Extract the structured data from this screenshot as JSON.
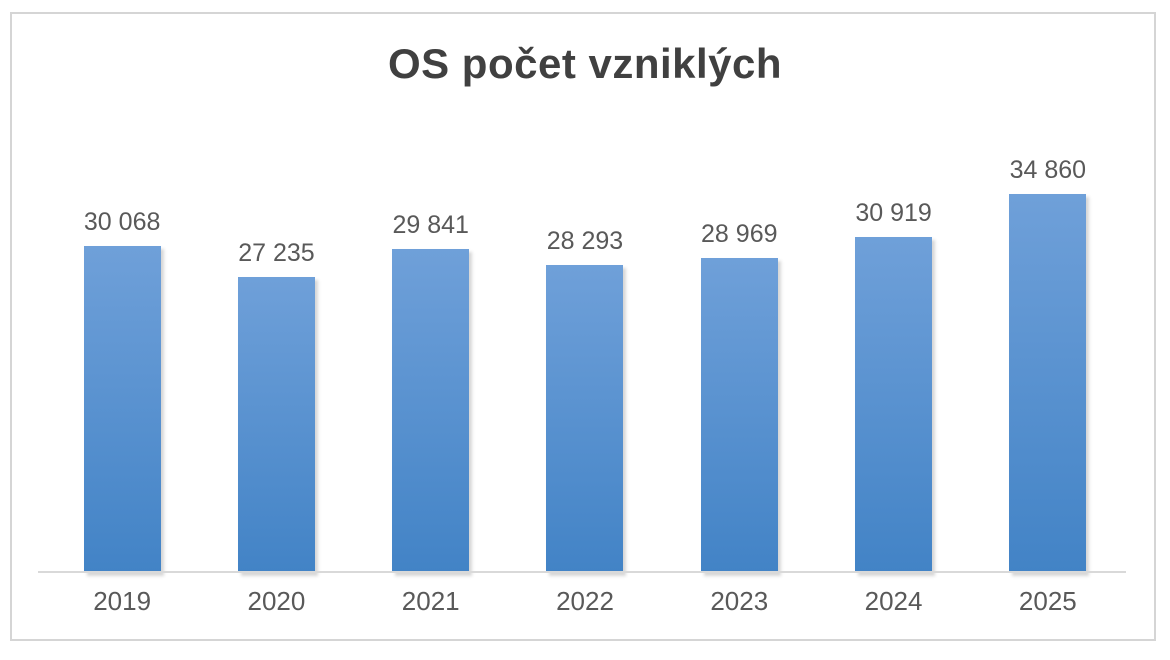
{
  "chart_data": {
    "type": "bar",
    "title": "OS počet vzniklých",
    "categories": [
      "2019",
      "2020",
      "2021",
      "2022",
      "2023",
      "2024",
      "2025"
    ],
    "values": [
      30068,
      27235,
      29841,
      28293,
      28969,
      30919,
      34860
    ],
    "value_labels": [
      "30 068",
      "27 235",
      "29 841",
      "28 293",
      "28 969",
      "30 919",
      "34 860"
    ],
    "xlabel": "",
    "ylabel": "",
    "ylim": [
      0,
      40000
    ],
    "grid": false,
    "legend": false,
    "data_labels_position": "above-bars",
    "colors": {
      "bar_gradient_top": "#6FA0D9",
      "bar_gradient_bottom": "#4283C6",
      "title_text": "#404040",
      "label_text": "#595959",
      "axis_line": "#D9D9D9",
      "frame_border": "#D5D5D5",
      "background": "#FFFFFF"
    }
  }
}
